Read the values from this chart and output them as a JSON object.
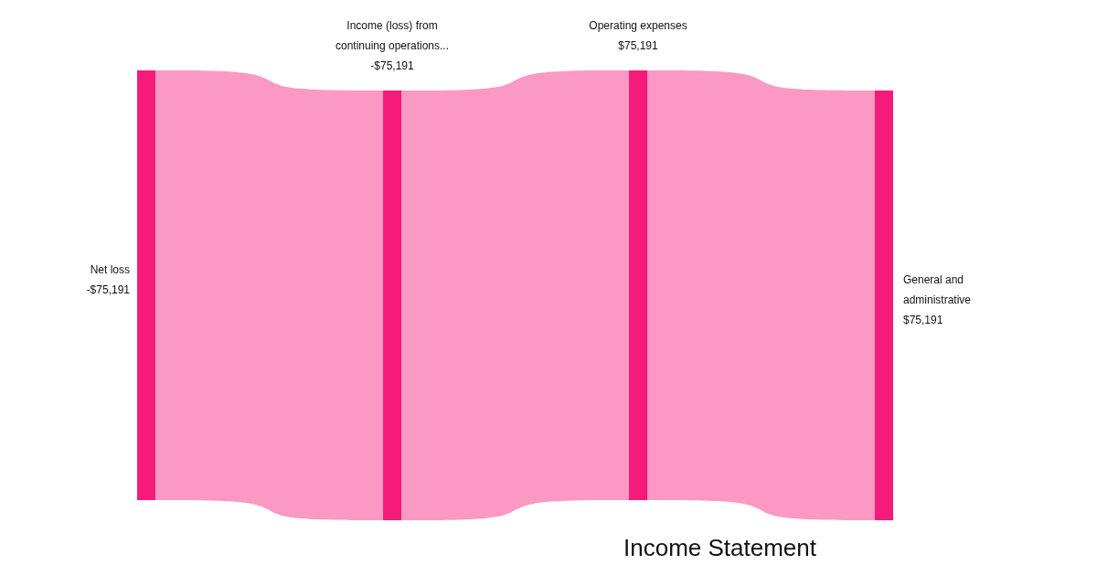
{
  "chart_data": {
    "type": "other",
    "title": "Income Statement",
    "categories": [
      "Net loss",
      "Income (loss) from continuing operations...",
      "Operating expenses",
      "General and administrative"
    ],
    "values": [
      -75191,
      -75191,
      75191,
      75191
    ],
    "value_labels": [
      "-$75,191",
      "-$75,191",
      "$75,191",
      "$75,191"
    ],
    "color": "#f61a7b"
  }
}
